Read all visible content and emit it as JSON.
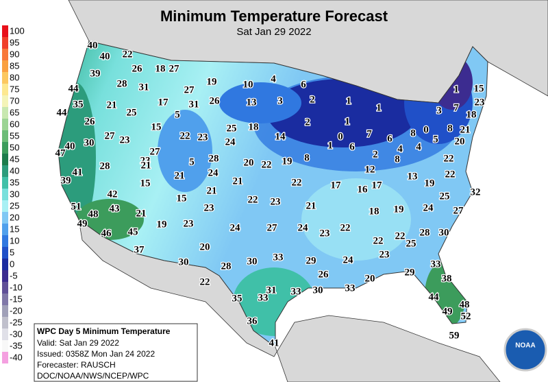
{
  "header": {
    "title": "Minimum Temperature Forecast",
    "subtitle": "Sat Jan 29 2022"
  },
  "legend": {
    "items": [
      {
        "label": 100,
        "color": "#e8101a"
      },
      {
        "label": 95,
        "color": "#f0402a"
      },
      {
        "label": 90,
        "color": "#f8783a"
      },
      {
        "label": 85,
        "color": "#faa040"
      },
      {
        "label": 80,
        "color": "#fcc860"
      },
      {
        "label": 75,
        "color": "#fde890"
      },
      {
        "label": 70,
        "color": "#f4f4b8"
      },
      {
        "label": 65,
        "color": "#c8e8b0"
      },
      {
        "label": 60,
        "color": "#9cd494"
      },
      {
        "label": 55,
        "color": "#6cbc78"
      },
      {
        "label": 50,
        "color": "#3c9c5c"
      },
      {
        "label": 45,
        "color": "#1c7c4c"
      },
      {
        "label": 40,
        "color": "#2c9c7c"
      },
      {
        "label": 35,
        "color": "#40c0a8"
      },
      {
        "label": 30,
        "color": "#78e0dc"
      },
      {
        "label": 25,
        "color": "#a8f0f4"
      },
      {
        "label": 20,
        "color": "#80c8f4"
      },
      {
        "label": 15,
        "color": "#50a0ec"
      },
      {
        "label": 10,
        "color": "#3078e0"
      },
      {
        "label": 5,
        "color": "#2050c8"
      },
      {
        "label": 0,
        "color": "#1a2ca0"
      },
      {
        "label": -5,
        "color": "#3c2c90"
      },
      {
        "label": -10,
        "color": "#605098"
      },
      {
        "label": -15,
        "color": "#8078a8"
      },
      {
        "label": -20,
        "color": "#a0a0b8"
      },
      {
        "label": -25,
        "color": "#c0c0cc"
      },
      {
        "label": -30,
        "color": "#e0e0e8"
      },
      {
        "label": -35,
        "color": "#f8f8f8"
      },
      {
        "label": -40,
        "color": "#f4a0e0"
      }
    ]
  },
  "info": {
    "title": "WPC Day 5 Minimum Temperature",
    "lines": [
      "Valid: Sat Jan 29 2022",
      "Issued: 0358Z Mon Jan 24 2022",
      "Forecaster: RAUSCH",
      "DOC/NOAA/NWS/NCEP/WPC"
    ]
  },
  "logo": "NOAA",
  "temperatures": [
    40,
    40,
    22,
    39,
    26,
    18,
    27,
    44,
    28,
    31,
    27,
    19,
    10,
    4,
    6,
    35,
    21,
    25,
    17,
    31,
    26,
    13,
    3,
    2,
    1,
    1,
    1,
    15,
    44,
    26,
    5,
    15,
    25,
    18,
    2,
    1,
    7,
    3,
    7,
    18,
    23,
    27,
    23,
    22,
    23,
    24,
    14,
    0,
    6,
    8,
    0,
    8,
    21,
    30,
    27,
    1,
    6,
    4,
    4,
    5,
    20,
    47,
    40,
    28,
    23,
    21,
    5,
    28,
    20,
    22,
    19,
    8,
    2,
    8,
    22,
    41,
    21,
    24,
    21,
    12,
    22,
    39,
    15,
    22,
    17,
    16,
    17,
    13,
    19,
    42,
    21,
    15,
    22,
    23,
    21,
    25,
    32,
    51,
    48,
    43,
    21,
    23,
    18,
    19,
    24,
    27,
    49,
    19,
    23,
    24,
    27,
    24,
    23,
    22,
    28,
    30,
    46,
    45,
    22,
    22,
    25,
    20,
    37,
    30,
    28,
    30,
    33,
    29,
    24,
    23,
    33,
    22,
    26,
    29,
    20,
    38,
    31,
    33,
    30,
    33,
    35,
    33,
    44,
    48,
    49,
    52,
    36,
    41,
    59
  ]
}
